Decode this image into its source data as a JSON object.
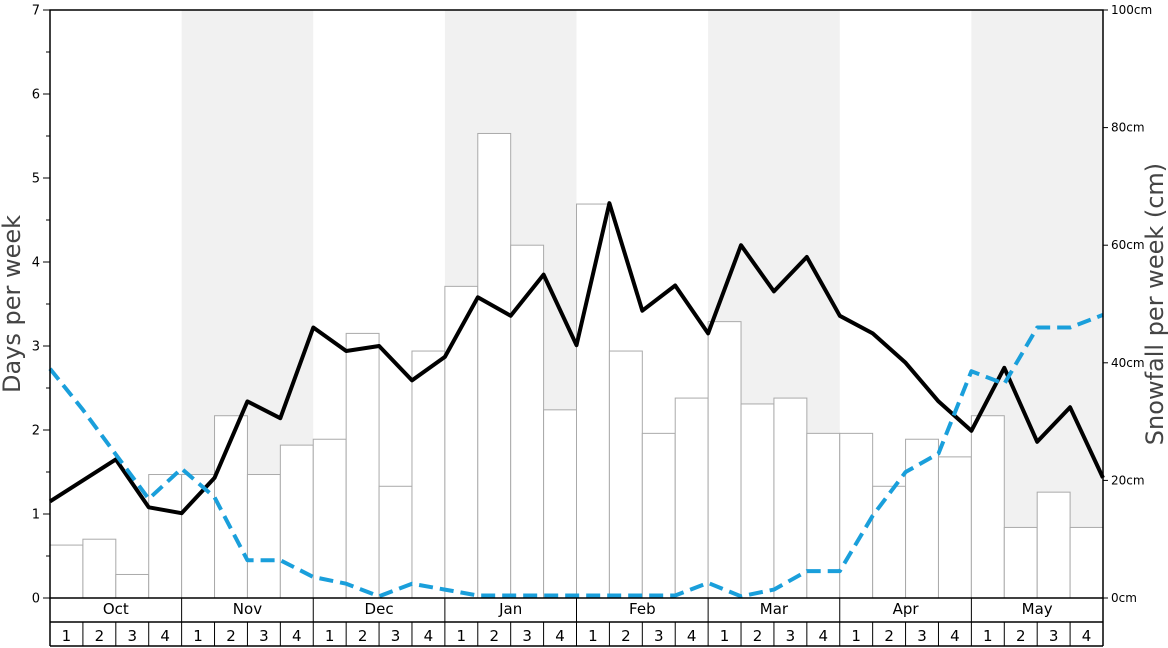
{
  "chart_data": {
    "type": "bar",
    "ylabel": "Days per week",
    "y2label": "Snowfall per week (cm)",
    "ylim": [
      0,
      7
    ],
    "y2lim": [
      0,
      100
    ],
    "y_ticks": [
      "0",
      "1",
      "2",
      "3",
      "4",
      "5",
      "6",
      "7"
    ],
    "y2_ticks": [
      "0cm",
      "20cm",
      "40cm",
      "60cm",
      "80cm",
      "100cm"
    ],
    "y2_tick_values": [
      0,
      20,
      40,
      60,
      80,
      100
    ],
    "months": [
      "Oct",
      "Nov",
      "Dec",
      "Jan",
      "Feb",
      "Mar",
      "Apr",
      "May"
    ],
    "weeks": [
      "1",
      "2",
      "3",
      "4"
    ],
    "grid": false,
    "alternating_month_shading": true,
    "series": [
      {
        "kind": "bar",
        "axis": "right",
        "color": "#ffffff",
        "edge_color": "#aaaaaa",
        "values": [
          9,
          10,
          4,
          21,
          21,
          31,
          21,
          26,
          27,
          45,
          19,
          42,
          53,
          79,
          60,
          32,
          67,
          42,
          28,
          34,
          47,
          33,
          34,
          28,
          28,
          19,
          27,
          24,
          31,
          12,
          18,
          12
        ]
      },
      {
        "kind": "line",
        "axis": "left",
        "color": "#000000",
        "style": "solid",
        "values": [
          1.15,
          1.4,
          1.65,
          1.08,
          1.01,
          1.43,
          2.34,
          2.14,
          3.22,
          2.94,
          3.0,
          2.59,
          2.87,
          3.58,
          3.36,
          3.85,
          3.01,
          4.7,
          3.42,
          3.72,
          3.15,
          4.2,
          3.65,
          4.06,
          3.36,
          3.15,
          2.8,
          2.34,
          1.99,
          2.74,
          1.86,
          2.27,
          1.43
        ]
      },
      {
        "kind": "line",
        "axis": "left",
        "color": "#1a9fdb",
        "style": "dashed",
        "values": [
          2.73,
          2.24,
          1.71,
          1.18,
          1.54,
          1.2,
          0.45,
          0.45,
          0.25,
          0.17,
          0.02,
          0.17,
          0.1,
          0.03,
          0.03,
          0.03,
          0.03,
          0.03,
          0.03,
          0.03,
          0.18,
          0.02,
          0.1,
          0.32,
          0.32,
          0.98,
          1.5,
          1.72,
          2.7,
          2.55,
          3.22,
          3.22,
          3.37
        ]
      }
    ]
  }
}
